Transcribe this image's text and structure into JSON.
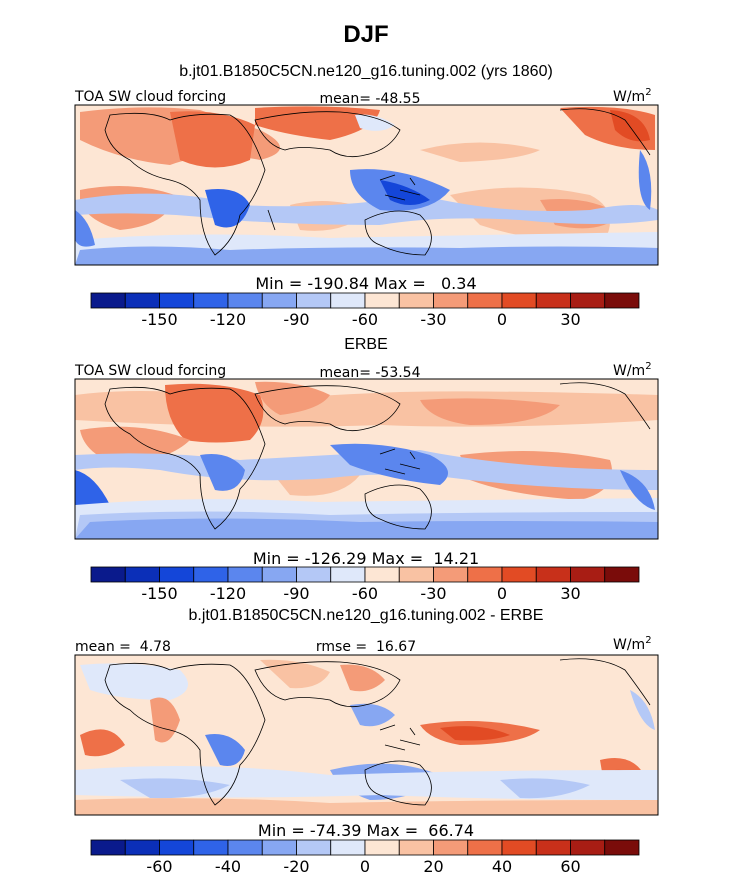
{
  "chart_data": {
    "title": "DJF",
    "panels": [
      {
        "type": "heatmap",
        "subtitle": "b.jt01.B1850C5CN.ne120_g16.tuning.002 (yrs 1860)",
        "left_label": "TOA SW cloud forcing",
        "center_label": "mean= -48.55",
        "units": "W/m",
        "units_sup": "2",
        "minmax": "Min = -190.84 Max =   0.34",
        "colorbar": {
          "levels": [
            -165,
            -150,
            -135,
            -120,
            -105,
            -90,
            -75,
            -60,
            -45,
            -30,
            -15,
            0,
            15,
            30,
            45
          ],
          "tick_labels": [
            "-150",
            "-120",
            "-90",
            "-60",
            "-30",
            "0",
            "30"
          ],
          "tick_values": [
            -150,
            -120,
            -90,
            -60,
            -30,
            0,
            30
          ]
        }
      },
      {
        "type": "heatmap",
        "subtitle": "ERBE",
        "left_label": "TOA SW cloud forcing",
        "center_label": "mean= -53.54",
        "units": "W/m",
        "units_sup": "2",
        "minmax": "Min = -126.29 Max =  14.21",
        "colorbar": {
          "levels": [
            -165,
            -150,
            -135,
            -120,
            -105,
            -90,
            -75,
            -60,
            -45,
            -30,
            -15,
            0,
            15,
            30,
            45
          ],
          "tick_labels": [
            "-150",
            "-120",
            "-90",
            "-60",
            "-30",
            "0",
            "30"
          ],
          "tick_values": [
            -150,
            -120,
            -90,
            -60,
            -30,
            0,
            30
          ]
        }
      },
      {
        "type": "heatmap",
        "subtitle": "b.jt01.B1850C5CN.ne120_g16.tuning.002 - ERBE",
        "left_label": "mean =  4.78",
        "center_label": "rmse =  16.67",
        "units": "W/m",
        "units_sup": "2",
        "minmax": "Min = -74.39 Max =  66.74",
        "colorbar": {
          "levels": [
            -70,
            -60,
            -50,
            -40,
            -30,
            -20,
            -10,
            0,
            10,
            20,
            30,
            40,
            50,
            60,
            70
          ],
          "tick_labels": [
            "-60",
            "-40",
            "-20",
            "0",
            "20",
            "40",
            "60"
          ],
          "tick_values": [
            -60,
            -40,
            -20,
            0,
            20,
            40,
            60
          ]
        }
      }
    ]
  },
  "colors": {
    "palette": [
      "#0a1a8c",
      "#0b2fb8",
      "#1446d9",
      "#2f63e8",
      "#5b86ee",
      "#87a7f2",
      "#b4c8f6",
      "#dfe8fa",
      "#fde6d4",
      "#f9c2a3",
      "#f49b78",
      "#ee7048",
      "#e24b24",
      "#c8301a",
      "#a81d14",
      "#7a0c0a"
    ],
    "coast": "#000000"
  }
}
